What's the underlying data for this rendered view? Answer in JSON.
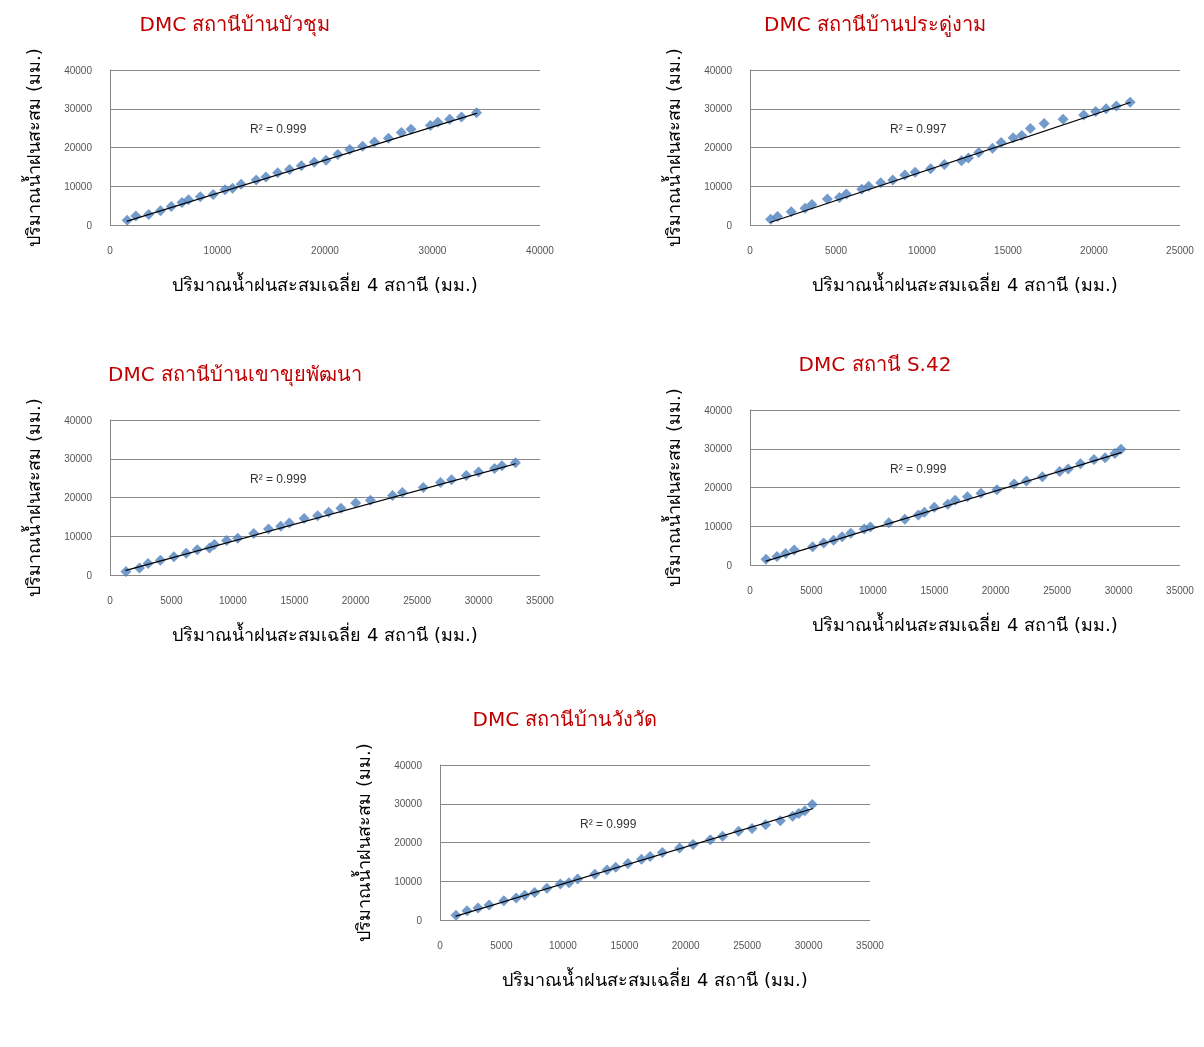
{
  "chart_data": [
    {
      "type": "scatter",
      "title": "DMC สถานีบ้านบัวชุม",
      "xlabel": "ปริมาณน้ำฝนสะสมเฉลี่ย 4 สถานี (มม.)",
      "ylabel": "ปริมาณน้ำฝนสะสม (มม.)",
      "annotations": [
        "R² = 0.999"
      ],
      "xlim": [
        0,
        40000
      ],
      "xticks": [
        0,
        10000,
        20000,
        30000,
        40000
      ],
      "ylim": [
        0,
        40000
      ],
      "yticks": [
        0,
        10000,
        20000,
        30000,
        40000
      ],
      "grid": "y",
      "marker": "diamond",
      "series": [
        {
          "color": "#4f81bd",
          "x": [
            1600,
            2400,
            3600,
            4700,
            5700,
            6700,
            7300,
            8400,
            9600,
            10700,
            11400,
            12200,
            13600,
            14500,
            15600,
            16700,
            17800,
            19000,
            20100,
            21200,
            22300,
            23500,
            24600,
            25900,
            27100,
            28000,
            29800,
            30500,
            31600,
            32700,
            34100
          ],
          "values": [
            1200,
            2300,
            2700,
            3700,
            4800,
            5800,
            6500,
            7300,
            7900,
            9100,
            9500,
            10500,
            11600,
            12400,
            13500,
            14300,
            15300,
            16200,
            16700,
            18200,
            19500,
            20300,
            21400,
            22400,
            23900,
            24700,
            25700,
            26500,
            27300,
            27900,
            29000
          ]
        },
        {
          "type": "line",
          "color": "#000000",
          "marker": "none",
          "x": [
            1600,
            34100
          ],
          "values": [
            1000,
            28800
          ]
        }
      ]
    },
    {
      "type": "scatter",
      "title": "DMC สถานีบ้านประดู่งาม",
      "xlabel": "ปริมาณน้ำฝนสะสมเฉลี่ย 4 สถานี (มม.)",
      "ylabel": "ปริมาณน้ำฝนสะสม (มม.)",
      "annotations": [
        "R² = 0.997"
      ],
      "xlim": [
        0,
        25000
      ],
      "xticks": [
        0,
        5000,
        10000,
        15000,
        20000,
        25000
      ],
      "ylim": [
        0,
        40000
      ],
      "yticks": [
        0,
        10000,
        20000,
        30000,
        40000
      ],
      "grid": "y",
      "marker": "diamond",
      "series": [
        {
          "color": "#4f81bd",
          "x": [
            1200,
            1600,
            2400,
            3200,
            3600,
            4500,
            5200,
            5600,
            6500,
            6900,
            7600,
            8300,
            9000,
            9600,
            10500,
            11300,
            12300,
            12700,
            13300,
            14100,
            14600,
            15300,
            15800,
            16300,
            17100,
            18200,
            19400,
            20100,
            20700,
            21300,
            22100
          ],
          "values": [
            1500,
            2200,
            3400,
            4300,
            5300,
            6700,
            7100,
            8000,
            9200,
            10000,
            10900,
            11600,
            12900,
            13600,
            14500,
            15600,
            16600,
            17300,
            18700,
            19800,
            21300,
            22500,
            23100,
            24900,
            26200,
            27300,
            28400,
            29300,
            30000,
            30700,
            31700
          ]
        },
        {
          "type": "line",
          "color": "#000000",
          "marker": "none",
          "x": [
            1200,
            22100
          ],
          "values": [
            700,
            31600
          ]
        }
      ]
    },
    {
      "type": "scatter",
      "title": "DMC สถานีบ้านเขาขุยพัฒนา",
      "xlabel": "ปริมาณน้ำฝนสะสมเฉลี่ย 4 สถานี (มม.)",
      "ylabel": "ปริมาณน้ำฝนสะสม (มม.)",
      "annotations": [
        "R² = 0.999"
      ],
      "xlim": [
        0,
        35000
      ],
      "xticks": [
        0,
        5000,
        10000,
        15000,
        20000,
        25000,
        30000,
        35000
      ],
      "ylim": [
        0,
        40000
      ],
      "yticks": [
        0,
        10000,
        20000,
        30000,
        40000
      ],
      "grid": "y",
      "marker": "diamond",
      "series": [
        {
          "color": "#4f81bd",
          "x": [
            1300,
            2400,
            3100,
            4100,
            5200,
            6200,
            7100,
            8100,
            8500,
            9500,
            10400,
            11700,
            12900,
            13900,
            14600,
            15800,
            16900,
            17800,
            18800,
            20000,
            21200,
            23000,
            23800,
            25500,
            26900,
            27800,
            29000,
            30000,
            31300,
            31900,
            33000
          ],
          "values": [
            900,
            1800,
            3000,
            3800,
            4700,
            5600,
            6500,
            7000,
            7900,
            8900,
            9500,
            10700,
            11900,
            12600,
            13400,
            14600,
            15300,
            16200,
            17200,
            18600,
            19300,
            20500,
            21300,
            22600,
            23900,
            24600,
            25700,
            26600,
            27500,
            28200,
            29000
          ]
        },
        {
          "type": "line",
          "color": "#000000",
          "marker": "none",
          "x": [
            1300,
            33000
          ],
          "values": [
            1200,
            28700
          ]
        }
      ]
    },
    {
      "type": "scatter",
      "title": "DMC สถานี S.42",
      "xlabel": "ปริมาณน้ำฝนสะสมเฉลี่ย 4 สถานี (มม.)",
      "ylabel": "ปริมาณน้ำฝนสะสม (มม.)",
      "annotations": [
        "R² = 0.999"
      ],
      "xlim": [
        0,
        35000
      ],
      "xticks": [
        0,
        5000,
        10000,
        15000,
        20000,
        25000,
        30000,
        35000
      ],
      "ylim": [
        0,
        40000
      ],
      "yticks": [
        0,
        10000,
        20000,
        30000,
        40000
      ],
      "grid": "y",
      "marker": "diamond",
      "series": [
        {
          "color": "#4f81bd",
          "x": [
            1300,
            2200,
            2900,
            3600,
            5100,
            6000,
            6800,
            7500,
            8200,
            9300,
            9800,
            11300,
            12600,
            13700,
            14200,
            15000,
            16100,
            16700,
            17700,
            18800,
            20100,
            21500,
            22500,
            23800,
            25200,
            25900,
            26900,
            28000,
            28900,
            29700,
            30200
          ],
          "values": [
            1500,
            2200,
            3000,
            3900,
            4700,
            5700,
            6400,
            7300,
            8200,
            9300,
            9800,
            10900,
            11800,
            12900,
            13600,
            14900,
            15700,
            16700,
            17600,
            18500,
            19400,
            20900,
            21700,
            22800,
            24100,
            24800,
            26100,
            27200,
            27700,
            28800,
            29900
          ]
        },
        {
          "type": "line",
          "color": "#000000",
          "marker": "none",
          "x": [
            1300,
            30200
          ],
          "values": [
            1000,
            29000
          ]
        }
      ]
    },
    {
      "type": "scatter",
      "title": "DMC สถานีบ้านวังวัด",
      "xlabel": "ปริมาณน้ำฝนสะสมเฉลี่ย 4 สถานี (มม.)",
      "ylabel": "ปริมาณน้ำฝนสะสม (มม.)",
      "annotations": [
        "R² = 0.999"
      ],
      "xlim": [
        0,
        35000
      ],
      "xticks": [
        0,
        5000,
        10000,
        15000,
        20000,
        25000,
        30000,
        35000
      ],
      "ylim": [
        0,
        40000
      ],
      "yticks": [
        0,
        10000,
        20000,
        30000,
        40000
      ],
      "grid": "y",
      "marker": "diamond",
      "series": [
        {
          "color": "#4f81bd",
          "x": [
            1300,
            2200,
            3100,
            4000,
            5200,
            6200,
            6900,
            7700,
            8700,
            9800,
            10500,
            11200,
            12600,
            13600,
            14300,
            15300,
            16400,
            17100,
            18100,
            19500,
            20600,
            22000,
            23000,
            24300,
            25400,
            26500,
            27700,
            28700,
            29200,
            29700,
            30300
          ],
          "values": [
            1200,
            2400,
            3100,
            3900,
            5000,
            5700,
            6400,
            7100,
            8200,
            9300,
            9600,
            10600,
            11800,
            12900,
            13600,
            14600,
            15700,
            16400,
            17400,
            18600,
            19500,
            20700,
            21600,
            22900,
            23600,
            24600,
            25600,
            26800,
            27500,
            28200,
            29800
          ]
        },
        {
          "type": "line",
          "color": "#000000",
          "marker": "none",
          "x": [
            1300,
            30300
          ],
          "values": [
            1000,
            28700
          ]
        }
      ]
    }
  ]
}
